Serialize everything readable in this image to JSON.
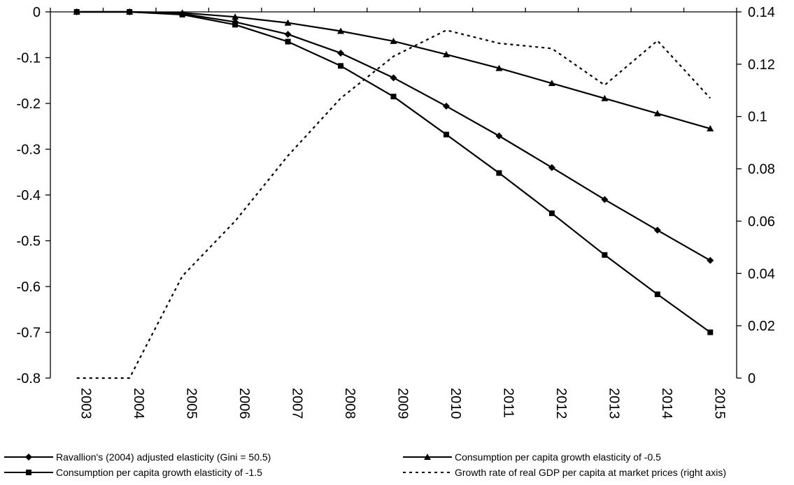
{
  "chart_data": {
    "type": "line",
    "categories": [
      "2003",
      "2004",
      "2005",
      "2006",
      "2007",
      "2008",
      "2009",
      "2010",
      "2011",
      "2012",
      "2013",
      "2014",
      "2015"
    ],
    "y_left": {
      "min": -0.8,
      "max": 0,
      "ticks": [
        0,
        -0.1,
        -0.2,
        -0.3,
        -0.4,
        -0.5,
        -0.6,
        -0.7,
        -0.8
      ],
      "tick_labels": [
        "0",
        "-0.1",
        "-0.2",
        "-0.3",
        "-0.4",
        "-0.5",
        "-0.6",
        "-0.7",
        "-0.8"
      ]
    },
    "y_right": {
      "min": 0,
      "max": 0.14,
      "ticks": [
        0.14,
        0.12,
        0.1,
        0.08,
        0.06,
        0.04,
        0.02,
        0
      ],
      "tick_labels": [
        "0.14",
        "0.12",
        "0.1",
        "0.08",
        "0.06",
        "0.04",
        "0.02",
        "0"
      ]
    },
    "grid": false,
    "legend_position": "bottom",
    "series": [
      {
        "name": "Ravallion's (2004) adjusted elasticity (Gini = 50.5)",
        "axis": "left",
        "marker": "diamond",
        "style": "solid",
        "color": "#000000",
        "values": [
          0,
          0,
          -0.004,
          -0.022,
          -0.049,
          -0.09,
          -0.144,
          -0.206,
          -0.271,
          -0.34,
          -0.41,
          -0.477,
          -0.543
        ]
      },
      {
        "name": "Consumption per capita growth elasticity of -0.5",
        "axis": "left",
        "marker": "triangle",
        "style": "solid",
        "color": "#000000",
        "values": [
          0,
          0,
          -0.002,
          -0.011,
          -0.024,
          -0.042,
          -0.064,
          -0.093,
          -0.123,
          -0.156,
          -0.189,
          -0.222,
          -0.255
        ]
      },
      {
        "name": "Consumption per capita growth elasticity of -1.5",
        "axis": "left",
        "marker": "square",
        "style": "solid",
        "color": "#000000",
        "values": [
          0,
          0,
          -0.006,
          -0.028,
          -0.065,
          -0.118,
          -0.185,
          -0.268,
          -0.352,
          -0.44,
          -0.531,
          -0.617,
          -0.7
        ]
      },
      {
        "name": "Growth rate of real GDP per capita at market prices (right axis)",
        "axis": "right",
        "marker": "none",
        "style": "dashed",
        "color": "#000000",
        "values": [
          0,
          0,
          0.039,
          0.06,
          0.085,
          0.107,
          0.123,
          0.133,
          0.128,
          0.126,
          0.112,
          0.129,
          0.107
        ]
      }
    ]
  },
  "legend": {
    "items": [
      "Ravallion's (2004) adjusted elasticity (Gini = 50.5)",
      "Consumption per capita growth elasticity of -0.5",
      "Consumption per capita growth elasticity of -1.5",
      "Growth rate of real GDP per capita at market prices (right axis)"
    ]
  }
}
